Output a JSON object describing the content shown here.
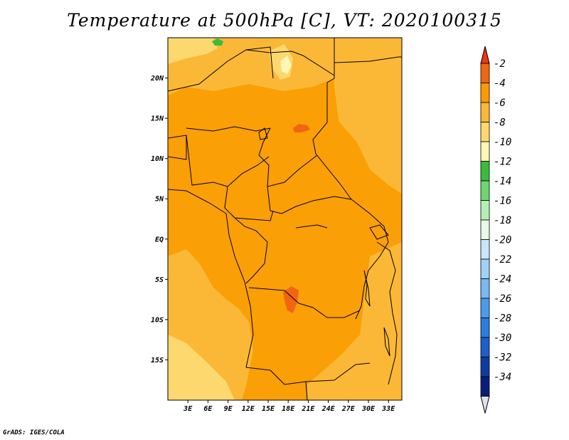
{
  "title": "Temperature at 500hPa [C], VT: 2020100315",
  "credit": "GrADS: IGES/COLA",
  "map": {
    "lon_range": [
      0,
      35
    ],
    "lat_range": [
      -20,
      25
    ],
    "lat_ticks": [
      {
        "lat": 20,
        "label": "20N"
      },
      {
        "lat": 15,
        "label": "15N"
      },
      {
        "lat": 10,
        "label": "10N"
      },
      {
        "lat": 5,
        "label": "5N"
      },
      {
        "lat": 0,
        "label": "EQ"
      },
      {
        "lat": -5,
        "label": "5S"
      },
      {
        "lat": -10,
        "label": "10S"
      },
      {
        "lat": -15,
        "label": "15S"
      }
    ],
    "lon_ticks": [
      {
        "lon": 3,
        "label": "3E"
      },
      {
        "lon": 6,
        "label": "6E"
      },
      {
        "lon": 9,
        "label": "9E"
      },
      {
        "lon": 12,
        "label": "12E"
      },
      {
        "lon": 15,
        "label": "15E"
      },
      {
        "lon": 18,
        "label": "18E"
      },
      {
        "lon": 21,
        "label": "21E"
      },
      {
        "lon": 24,
        "label": "24E"
      },
      {
        "lon": 27,
        "label": "27E"
      },
      {
        "lon": 30,
        "label": "30E"
      },
      {
        "lon": 33,
        "label": "33E"
      }
    ]
  },
  "colorbar": {
    "top_color": "#e8380c",
    "bottom_color": "#dde0f2",
    "bins": [
      {
        "color": "#f26512"
      },
      {
        "color": "#fa9a03"
      },
      {
        "color": "#fbb836"
      },
      {
        "color": "#fdd86e"
      },
      {
        "color": "#fff6b5"
      },
      {
        "color": "#3cbb3c"
      },
      {
        "color": "#6ed66e"
      },
      {
        "color": "#b4f0b4"
      },
      {
        "color": "#e6fae6"
      },
      {
        "color": "#c8e6fa"
      },
      {
        "color": "#a0d2f5"
      },
      {
        "color": "#78b9f0"
      },
      {
        "color": "#4b9beb"
      },
      {
        "color": "#2d7ddc"
      },
      {
        "color": "#1e5fc8"
      },
      {
        "color": "#0f3ca0"
      },
      {
        "color": "#0a1e78"
      }
    ],
    "labels": [
      "-2",
      "-4",
      "-6",
      "-8",
      "-10",
      "-12",
      "-14",
      "-16",
      "-18",
      "-20",
      "-22",
      "-24",
      "-26",
      "-28",
      "-30",
      "-32",
      "-34"
    ]
  }
}
